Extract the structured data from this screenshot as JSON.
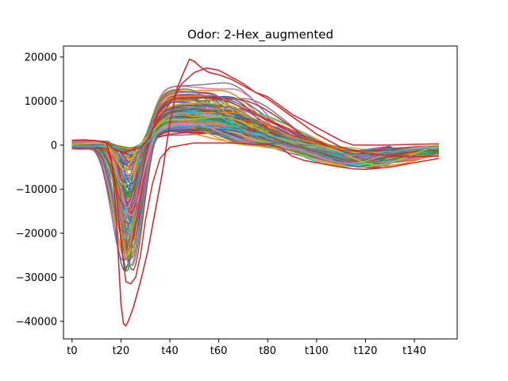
{
  "chart_data": {
    "type": "line",
    "title": "Odor: 2-Hex_augmented",
    "xlabel": "",
    "ylabel": "",
    "x_range": [
      0,
      150
    ],
    "xlim": [
      -3.5,
      157.5
    ],
    "ylim": [
      -44000,
      22500
    ],
    "x_ticks": [
      0,
      20,
      40,
      60,
      80,
      100,
      120,
      140
    ],
    "x_tick_labels": [
      "t0",
      "t20",
      "t40",
      "t60",
      "t80",
      "t100",
      "t120",
      "t140"
    ],
    "y_ticks": [
      -40000,
      -30000,
      -20000,
      -10000,
      0,
      10000,
      20000
    ],
    "y_tick_labels": [
      "−40000",
      "−30000",
      "−20000",
      "−10000",
      "0",
      "10000",
      "20000"
    ],
    "grid": false,
    "legend": "none",
    "series_count": 160,
    "color_cycle": [
      "#1f77b4",
      "#ff7f0e",
      "#2ca02c",
      "#d62728",
      "#9467bd",
      "#8c564b",
      "#e377c2",
      "#7f7f7f",
      "#bcbd22",
      "#17becf"
    ],
    "highlighted_series": [
      {
        "color": "#d62728",
        "x": [
          0,
          5,
          10,
          14,
          16,
          17,
          18,
          19,
          20,
          21,
          22,
          23,
          25,
          28,
          31,
          34,
          37,
          40,
          43,
          46,
          48,
          50,
          53,
          56,
          60,
          65,
          70,
          75,
          80,
          85,
          90,
          95,
          100,
          105,
          110,
          115,
          120,
          130,
          140,
          150
        ],
        "y": [
          1100,
          1200,
          1000,
          500,
          -3000,
          -8000,
          -16000,
          -26000,
          -36000,
          -40500,
          -41000,
          -40000,
          -37000,
          -31000,
          -24000,
          -15000,
          -6000,
          5000,
          13000,
          17000,
          19500,
          19000,
          17500,
          16500,
          16000,
          15000,
          13500,
          12000,
          10500,
          8500,
          6500,
          4500,
          2500,
          1000,
          -500,
          -1200,
          -1800,
          -2500,
          -2600,
          -2500
        ]
      }
    ],
    "envelope": {
      "x": [
        0,
        10,
        14,
        16,
        18,
        20,
        22,
        24,
        26,
        28,
        30,
        33,
        36,
        40,
        45,
        50,
        55,
        60,
        65,
        70,
        75,
        80,
        85,
        90,
        95,
        100,
        110,
        115,
        120,
        130,
        140,
        150
      ],
      "upper": [
        1100,
        1000,
        600,
        -500,
        -1200,
        -1500,
        -1500,
        -1200,
        -900,
        -500,
        500,
        3500,
        6500,
        9500,
        14000,
        16500,
        17500,
        17000,
        15500,
        14000,
        12000,
        11000,
        9000,
        7000,
        5500,
        4000,
        1000,
        0,
        0,
        0,
        200,
        300
      ],
      "lower": [
        -700,
        -600,
        -800,
        -3500,
        -10000,
        -22000,
        -31000,
        -31500,
        -30000,
        -25000,
        -17000,
        -8500,
        -3000,
        -500,
        0,
        500,
        500,
        500,
        500,
        400,
        200,
        100,
        -500,
        -2500,
        -3500,
        -4000,
        -5000,
        -5400,
        -5500,
        -5000,
        -4000,
        -3000
      ]
    }
  }
}
